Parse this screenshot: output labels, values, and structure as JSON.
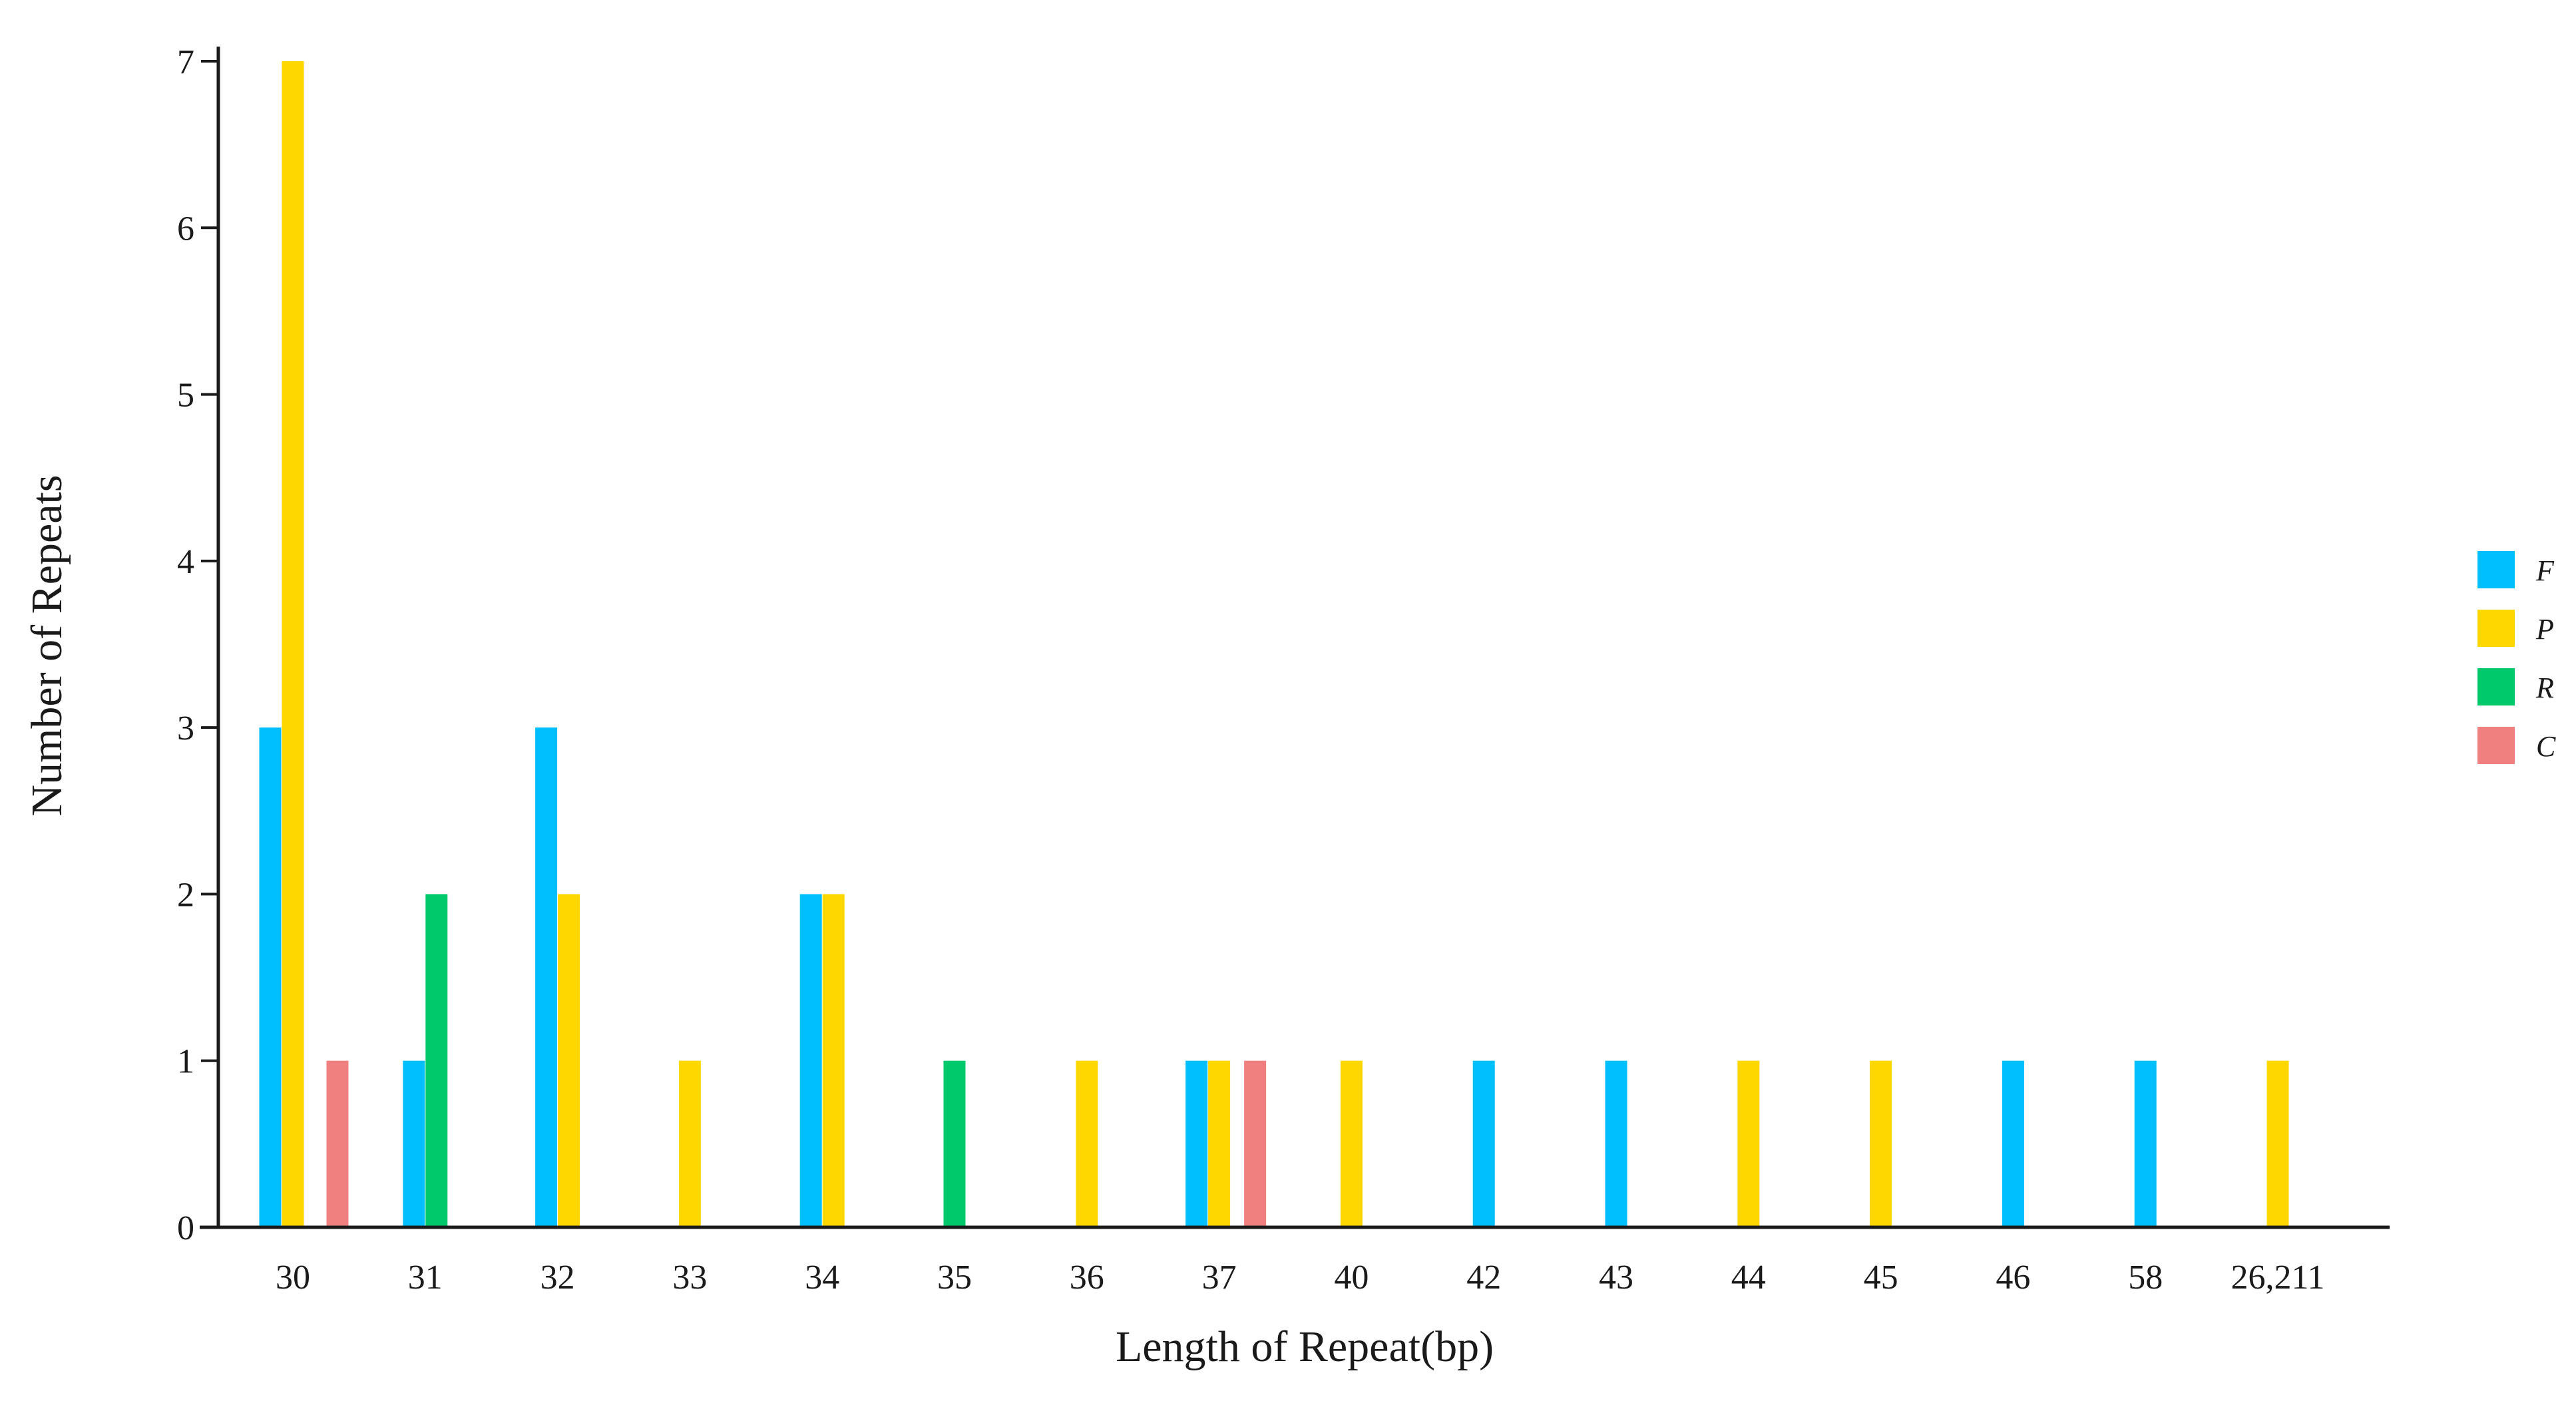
{
  "chart_data": {
    "type": "bar",
    "title": "",
    "xlabel": "Length of Repeat(bp)",
    "ylabel": "Number of Repeats",
    "categories": [
      "30",
      "31",
      "32",
      "33",
      "34",
      "35",
      "36",
      "37",
      "40",
      "42",
      "43",
      "44",
      "45",
      "46",
      "58",
      "26,211"
    ],
    "y_ticks": [
      "0",
      "1",
      "2",
      "3",
      "4",
      "5",
      "6",
      "7"
    ],
    "ylim": [
      0,
      7.0
    ],
    "grid": false,
    "legend_position": "right",
    "series": [
      {
        "name": "F",
        "color": "#00BFFF",
        "values": [
          3,
          1,
          3,
          0,
          2,
          0,
          0,
          1,
          0,
          1,
          1,
          0,
          0,
          1,
          1,
          0
        ]
      },
      {
        "name": "P",
        "color": "#FFD700",
        "values": [
          7,
          0,
          2,
          1,
          2,
          0,
          1,
          1,
          1,
          0,
          0,
          1,
          1,
          0,
          0,
          1
        ]
      },
      {
        "name": "R",
        "color": "#00C96B",
        "values": [
          0,
          2,
          0,
          0,
          0,
          1,
          0,
          0,
          0,
          0,
          0,
          0,
          0,
          0,
          0,
          0
        ]
      },
      {
        "name": "C",
        "color": "#F08080",
        "values": [
          1,
          0,
          0,
          0,
          0,
          0,
          0,
          1,
          0,
          0,
          0,
          0,
          0,
          0,
          0,
          0
        ]
      }
    ]
  }
}
